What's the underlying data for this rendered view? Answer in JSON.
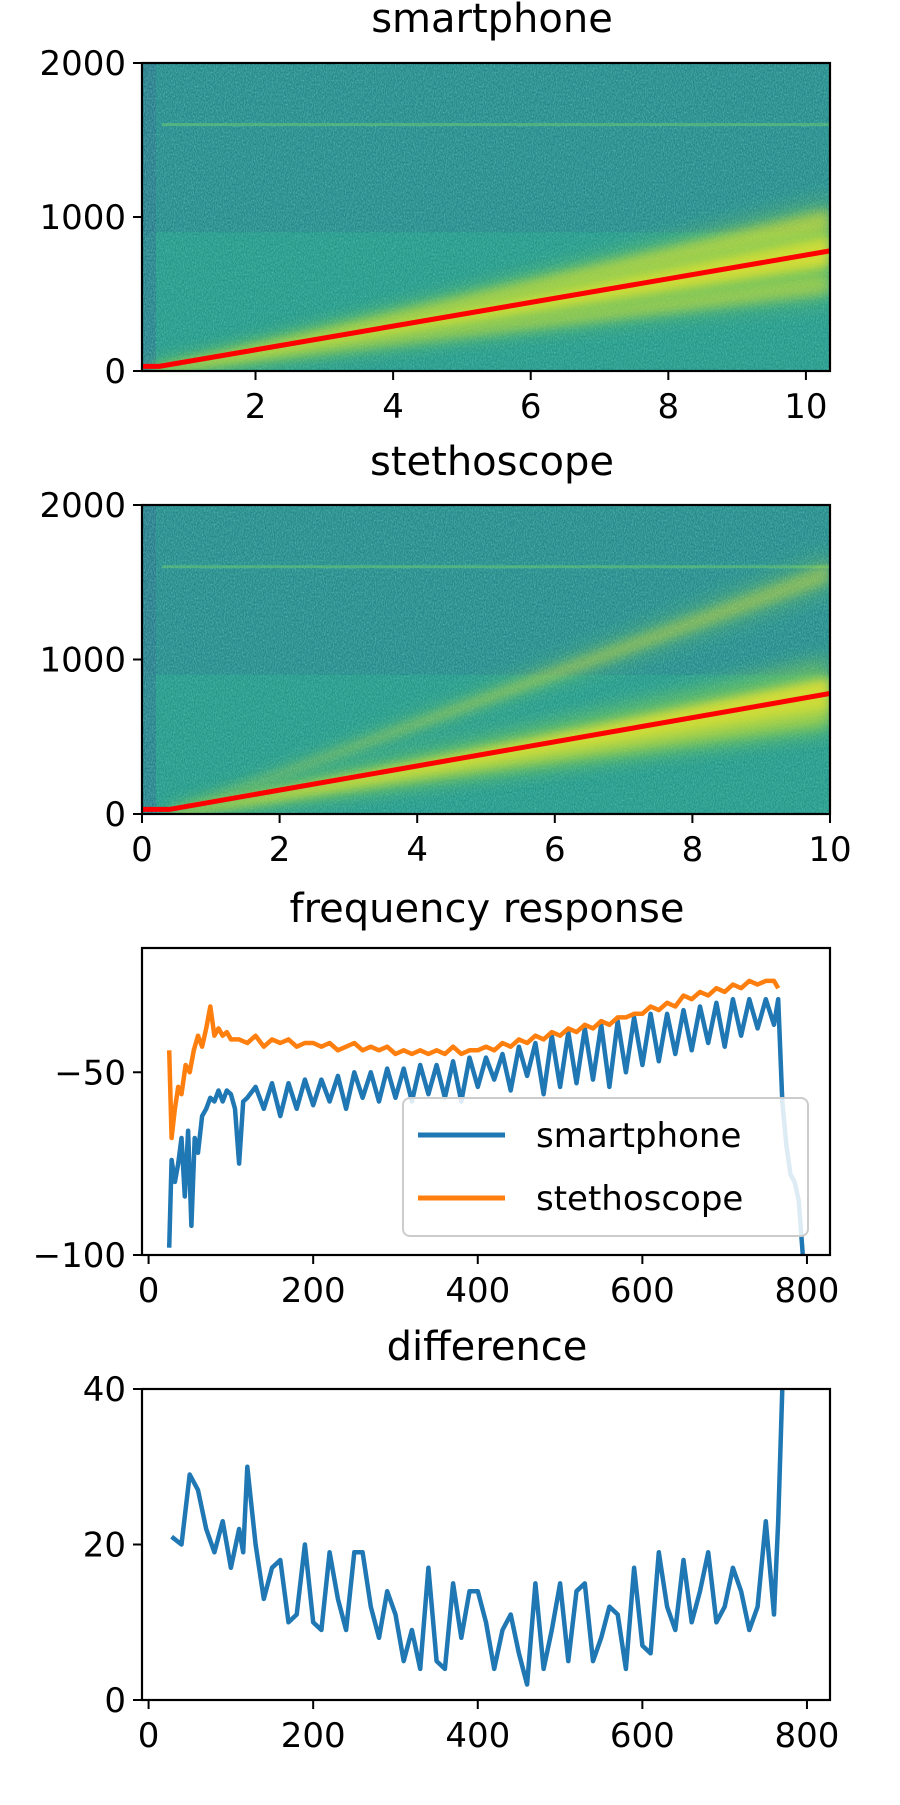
{
  "colors": {
    "smartphone": "#1f77b4",
    "stethoscope": "#ff7f0e",
    "fit_line": "#ff0000",
    "spec_base": "#26988a",
    "spec_dark": "#2f6c8e",
    "spec_bright": "#fde725"
  },
  "chart_data": [
    {
      "type": "heatmap",
      "title": "smartphone",
      "xlim": [
        0.35,
        10.35
      ],
      "ylim": [
        0,
        2000
      ],
      "xticks": [
        2,
        4,
        6,
        8,
        10
      ],
      "yticks": [
        0,
        1000,
        2000
      ],
      "overlay_line": {
        "x": [
          0.35,
          0.6,
          10.35
        ],
        "y": [
          30,
          30,
          780
        ]
      },
      "bright_bands": [
        {
          "x": [
            0.5,
            10.35
          ],
          "y": [
            0,
            780
          ],
          "strength": 1.0
        },
        {
          "x": [
            0.5,
            10.35
          ],
          "y": [
            0,
            980
          ],
          "strength": 0.55
        },
        {
          "x": [
            0.5,
            10.35
          ],
          "y": [
            0,
            560
          ],
          "strength": 0.45
        }
      ]
    },
    {
      "type": "heatmap",
      "title": "stethoscope",
      "xlim": [
        0,
        10
      ],
      "ylim": [
        0,
        2000
      ],
      "xticks": [
        0,
        2,
        4,
        6,
        8,
        10
      ],
      "yticks": [
        0,
        1000,
        2000
      ],
      "overlay_line": {
        "x": [
          0,
          0.4,
          10
        ],
        "y": [
          30,
          30,
          780
        ]
      },
      "bright_bands": [
        {
          "x": [
            0.4,
            10
          ],
          "y": [
            0,
            780
          ],
          "strength": 1.0
        },
        {
          "x": [
            0.4,
            10
          ],
          "y": [
            0,
            1560
          ],
          "strength": 0.45
        },
        {
          "x": [
            0.4,
            10
          ],
          "y": [
            0,
            640
          ],
          "strength": 0.4
        }
      ]
    },
    {
      "type": "line",
      "title": "frequency response",
      "xlim": [
        -8,
        828
      ],
      "ylim": [
        -100,
        -16
      ],
      "xticks": [
        0,
        200,
        400,
        600,
        800
      ],
      "yticks": [
        -100,
        -50
      ],
      "legend_position": "center-right",
      "series": [
        {
          "name": "smartphone",
          "x": [
            25,
            28,
            32,
            36,
            40,
            44,
            48,
            52,
            56,
            60,
            65,
            70,
            75,
            80,
            85,
            90,
            95,
            100,
            105,
            110,
            115,
            120,
            130,
            140,
            150,
            160,
            170,
            180,
            190,
            200,
            210,
            220,
            230,
            240,
            250,
            260,
            270,
            280,
            290,
            300,
            310,
            320,
            330,
            340,
            350,
            360,
            370,
            380,
            390,
            400,
            410,
            420,
            430,
            440,
            450,
            460,
            470,
            480,
            490,
            500,
            510,
            520,
            530,
            540,
            550,
            560,
            570,
            580,
            590,
            600,
            610,
            620,
            630,
            640,
            650,
            660,
            670,
            680,
            690,
            700,
            710,
            720,
            730,
            740,
            750,
            760,
            765,
            770,
            775,
            780,
            785,
            790,
            795
          ],
          "y": [
            -98,
            -74,
            -80,
            -75,
            -68,
            -84,
            -66,
            -92,
            -68,
            -72,
            -62,
            -60,
            -57,
            -58,
            -55,
            -58,
            -55,
            -56,
            -60,
            -75,
            -58,
            -57,
            -54,
            -60,
            -53,
            -62,
            -53,
            -60,
            -52,
            -59,
            -52,
            -58,
            -51,
            -60,
            -50,
            -57,
            -50,
            -58,
            -49,
            -57,
            -49,
            -58,
            -48,
            -56,
            -48,
            -57,
            -47,
            -58,
            -46,
            -54,
            -46,
            -52,
            -45,
            -55,
            -43,
            -51,
            -42,
            -56,
            -40,
            -54,
            -39,
            -53,
            -38,
            -52,
            -37,
            -54,
            -36,
            -50,
            -35,
            -48,
            -34,
            -47,
            -34,
            -45,
            -33,
            -44,
            -32,
            -42,
            -31,
            -43,
            -30,
            -40,
            -30,
            -38,
            -30,
            -37,
            -30,
            -58,
            -70,
            -78,
            -80,
            -85,
            -100
          ]
        },
        {
          "name": "stethoscope",
          "x": [
            25,
            28,
            32,
            36,
            40,
            45,
            50,
            55,
            60,
            65,
            70,
            75,
            80,
            85,
            90,
            95,
            100,
            110,
            120,
            130,
            140,
            150,
            160,
            170,
            180,
            190,
            200,
            210,
            220,
            230,
            240,
            250,
            260,
            270,
            280,
            290,
            300,
            310,
            320,
            330,
            340,
            350,
            360,
            370,
            380,
            390,
            400,
            410,
            420,
            430,
            440,
            450,
            460,
            470,
            480,
            490,
            500,
            510,
            520,
            530,
            540,
            550,
            560,
            570,
            580,
            590,
            600,
            610,
            620,
            630,
            640,
            650,
            660,
            670,
            680,
            690,
            700,
            710,
            720,
            730,
            740,
            750,
            760,
            765
          ],
          "y": [
            -44,
            -68,
            -60,
            -54,
            -56,
            -48,
            -50,
            -44,
            -40,
            -43,
            -38,
            -32,
            -40,
            -38,
            -40,
            -39,
            -41,
            -41,
            -42,
            -40,
            -43,
            -41,
            -42,
            -41,
            -43,
            -42,
            -42,
            -43,
            -42,
            -44,
            -43,
            -42,
            -44,
            -43,
            -44,
            -43,
            -45,
            -44,
            -45,
            -44,
            -45,
            -44,
            -45,
            -43,
            -45,
            -44,
            -44,
            -43,
            -44,
            -42,
            -43,
            -41,
            -42,
            -40,
            -41,
            -39,
            -40,
            -38,
            -39,
            -37,
            -38,
            -36,
            -37,
            -35,
            -35,
            -34,
            -34,
            -32,
            -33,
            -31,
            -32,
            -29,
            -30,
            -28,
            -29,
            -27,
            -28,
            -26,
            -27,
            -25,
            -26,
            -25,
            -25,
            -27
          ]
        }
      ]
    },
    {
      "type": "line",
      "title": "difference",
      "xlim": [
        -8,
        828
      ],
      "ylim": [
        0,
        40
      ],
      "xticks": [
        0,
        200,
        400,
        600,
        800
      ],
      "yticks": [
        0,
        20,
        40
      ],
      "series": [
        {
          "x": [
            28,
            40,
            50,
            60,
            70,
            80,
            90,
            100,
            110,
            115,
            120,
            130,
            140,
            150,
            160,
            170,
            180,
            190,
            200,
            210,
            220,
            230,
            240,
            250,
            260,
            270,
            280,
            290,
            300,
            310,
            320,
            330,
            340,
            350,
            360,
            370,
            380,
            390,
            400,
            410,
            420,
            430,
            440,
            450,
            460,
            470,
            480,
            490,
            500,
            510,
            520,
            530,
            540,
            550,
            560,
            570,
            580,
            590,
            600,
            610,
            620,
            630,
            640,
            650,
            660,
            670,
            680,
            690,
            700,
            710,
            720,
            730,
            740,
            750,
            760,
            765,
            770
          ],
          "y": [
            21,
            20,
            29,
            27,
            22,
            19,
            23,
            17,
            22,
            19,
            30,
            20,
            13,
            17,
            18,
            10,
            11,
            20,
            10,
            9,
            19,
            13,
            9,
            19,
            19,
            12,
            8,
            14,
            11,
            5,
            9,
            4,
            17,
            5,
            4,
            15,
            8,
            14,
            14,
            10,
            4,
            9,
            11,
            6,
            2,
            15,
            4,
            9,
            15,
            5,
            14,
            15,
            5,
            8,
            12,
            11,
            4,
            17,
            7,
            6,
            19,
            12,
            9,
            18,
            10,
            14,
            19,
            10,
            12,
            17,
            14,
            9,
            12,
            23,
            11,
            23,
            40
          ]
        }
      ]
    }
  ]
}
